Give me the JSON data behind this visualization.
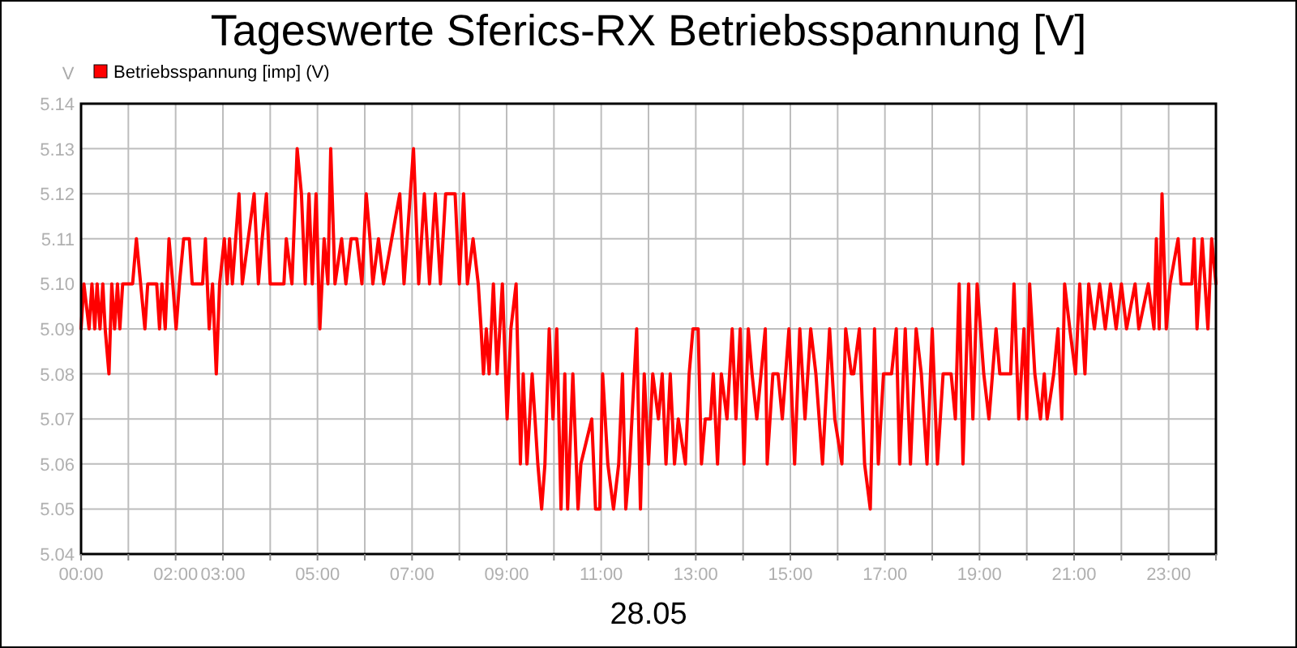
{
  "chart_data": {
    "type": "line",
    "title": "Tageswerte Sferics-RX Betriebsspannung [V]",
    "xlabel": "28.05",
    "ylabel": "V",
    "xlim": [
      0,
      24
    ],
    "xticks": [
      {
        "value": 0,
        "label": "00:00"
      },
      {
        "value": 1,
        "label": null
      },
      {
        "value": 2,
        "label": "02:00"
      },
      {
        "value": 3,
        "label": "03:00"
      },
      {
        "value": 4,
        "label": null
      },
      {
        "value": 5,
        "label": "05:00"
      },
      {
        "value": 6,
        "label": null
      },
      {
        "value": 7,
        "label": "07:00"
      },
      {
        "value": 8,
        "label": null
      },
      {
        "value": 9,
        "label": "09:00"
      },
      {
        "value": 10,
        "label": null
      },
      {
        "value": 11,
        "label": "11:00"
      },
      {
        "value": 12,
        "label": null
      },
      {
        "value": 13,
        "label": "13:00"
      },
      {
        "value": 14,
        "label": null
      },
      {
        "value": 15,
        "label": "15:00"
      },
      {
        "value": 16,
        "label": null
      },
      {
        "value": 17,
        "label": "17:00"
      },
      {
        "value": 18,
        "label": null
      },
      {
        "value": 19,
        "label": "19:00"
      },
      {
        "value": 20,
        "label": null
      },
      {
        "value": 21,
        "label": "21:00"
      },
      {
        "value": 22,
        "label": null
      },
      {
        "value": 23,
        "label": "23:00"
      },
      {
        "value": 24,
        "label": null
      }
    ],
    "ylim": [
      5.04,
      5.14
    ],
    "yticks": [
      5.04,
      5.05,
      5.06,
      5.07,
      5.08,
      5.09,
      {
        "value": 5.1,
        "label": "5.10"
      },
      5.11,
      5.12,
      5.13,
      5.14
    ],
    "grid": true,
    "legend": "top left",
    "marker": "none",
    "line_style": "solid",
    "series": [
      {
        "name": "Betriebsspannung [imp] (V)",
        "color": "#ff0000",
        "x": [
          0,
          0.06,
          0.17,
          0.23,
          0.29,
          0.34,
          0.4,
          0.46,
          0.51,
          0.59,
          0.65,
          0.71,
          0.77,
          0.82,
          0.88,
          1.09,
          1.17,
          1.26,
          1.35,
          1.41,
          1.6,
          1.66,
          1.71,
          1.78,
          1.86,
          1.94,
          2.01,
          2.08,
          2.17,
          2.29,
          2.35,
          2.57,
          2.63,
          2.71,
          2.78,
          2.86,
          2.93,
          3.03,
          3.09,
          3.14,
          3.2,
          3.27,
          3.34,
          3.41,
          3.66,
          3.75,
          3.83,
          3.92,
          4,
          4.29,
          4.34,
          4.46,
          4.57,
          4.66,
          4.74,
          4.82,
          4.89,
          4.97,
          5.05,
          5.14,
          5.22,
          5.28,
          5.37,
          5.51,
          5.6,
          5.71,
          5.83,
          5.94,
          6.03,
          6.11,
          6.17,
          6.29,
          6.4,
          6.74,
          6.83,
          7.03,
          7.14,
          7.26,
          7.37,
          7.49,
          7.6,
          7.71,
          7.83,
          7.91,
          8,
          8.09,
          8.17,
          8.29,
          8.4,
          8.46,
          8.51,
          8.57,
          8.63,
          8.72,
          8.8,
          8.91,
          9.01,
          9.09,
          9.2,
          9.29,
          9.35,
          9.43,
          9.54,
          9.66,
          9.74,
          9.81,
          9.9,
          9.98,
          10.06,
          10.15,
          10.23,
          10.29,
          10.4,
          10.51,
          10.57,
          10.8,
          10.88,
          10.97,
          11.03,
          11.14,
          11.26,
          11.37,
          11.45,
          11.52,
          11.6,
          11.75,
          11.83,
          11.91,
          12,
          12.09,
          12.21,
          12.29,
          12.37,
          12.46,
          12.55,
          12.63,
          12.78,
          12.86,
          12.94,
          13.05,
          13.12,
          13.2,
          13.31,
          13.37,
          13.46,
          13.54,
          13.66,
          13.77,
          13.85,
          13.94,
          14.02,
          14.11,
          14.19,
          14.29,
          14.38,
          14.47,
          14.51,
          14.63,
          14.74,
          14.83,
          14.97,
          15.09,
          15.2,
          15.31,
          15.43,
          15.54,
          15.68,
          15.83,
          15.94,
          16.09,
          16.17,
          16.29,
          16.34,
          16.46,
          16.57,
          16.69,
          16.78,
          16.86,
          16.97,
          17.14,
          17.24,
          17.31,
          17.43,
          17.54,
          17.66,
          17.77,
          17.89,
          18,
          18.11,
          18.23,
          18.4,
          18.49,
          18.57,
          18.65,
          18.77,
          18.86,
          18.95,
          19.09,
          19.2,
          19.35,
          19.43,
          19.66,
          19.73,
          19.83,
          19.94,
          20,
          20.06,
          20.17,
          20.29,
          20.37,
          20.43,
          20.57,
          20.66,
          20.74,
          20.8,
          20.91,
          21.03,
          21.12,
          21.23,
          21.31,
          21.43,
          21.54,
          21.66,
          21.77,
          21.89,
          22,
          22.11,
          22.29,
          22.37,
          22.57,
          22.69,
          22.74,
          22.8,
          22.86,
          22.95,
          23.03,
          23.2,
          23.26,
          23.49,
          23.54,
          23.6,
          23.71,
          23.83,
          23.91,
          24
        ],
        "values": [
          5.09,
          5.1,
          5.09,
          5.1,
          5.09,
          5.1,
          5.09,
          5.1,
          5.09,
          5.08,
          5.1,
          5.09,
          5.1,
          5.09,
          5.1,
          5.1,
          5.11,
          5.1,
          5.09,
          5.1,
          5.1,
          5.09,
          5.1,
          5.09,
          5.11,
          5.1,
          5.09,
          5.1,
          5.11,
          5.11,
          5.1,
          5.1,
          5.11,
          5.09,
          5.1,
          5.08,
          5.1,
          5.11,
          5.1,
          5.11,
          5.1,
          5.11,
          5.12,
          5.1,
          5.12,
          5.1,
          5.11,
          5.12,
          5.1,
          5.1,
          5.11,
          5.1,
          5.13,
          5.12,
          5.1,
          5.12,
          5.1,
          5.12,
          5.09,
          5.11,
          5.1,
          5.13,
          5.1,
          5.11,
          5.1,
          5.11,
          5.11,
          5.1,
          5.12,
          5.11,
          5.1,
          5.11,
          5.1,
          5.12,
          5.1,
          5.13,
          5.1,
          5.12,
          5.1,
          5.12,
          5.1,
          5.12,
          5.12,
          5.12,
          5.1,
          5.12,
          5.1,
          5.11,
          5.1,
          5.09,
          5.08,
          5.09,
          5.08,
          5.1,
          5.08,
          5.1,
          5.07,
          5.09,
          5.1,
          5.06,
          5.08,
          5.06,
          5.08,
          5.06,
          5.05,
          5.06,
          5.09,
          5.07,
          5.09,
          5.05,
          5.08,
          5.05,
          5.08,
          5.05,
          5.06,
          5.07,
          5.05,
          5.05,
          5.08,
          5.06,
          5.05,
          5.06,
          5.08,
          5.05,
          5.06,
          5.09,
          5.05,
          5.08,
          5.06,
          5.08,
          5.07,
          5.08,
          5.06,
          5.08,
          5.06,
          5.07,
          5.06,
          5.08,
          5.09,
          5.09,
          5.06,
          5.07,
          5.07,
          5.08,
          5.06,
          5.08,
          5.07,
          5.09,
          5.07,
          5.09,
          5.06,
          5.09,
          5.08,
          5.07,
          5.08,
          5.09,
          5.06,
          5.08,
          5.08,
          5.07,
          5.09,
          5.06,
          5.09,
          5.07,
          5.09,
          5.08,
          5.06,
          5.09,
          5.07,
          5.06,
          5.09,
          5.08,
          5.08,
          5.09,
          5.06,
          5.05,
          5.09,
          5.06,
          5.08,
          5.08,
          5.09,
          5.06,
          5.09,
          5.06,
          5.09,
          5.08,
          5.06,
          5.09,
          5.06,
          5.08,
          5.08,
          5.07,
          5.1,
          5.06,
          5.1,
          5.07,
          5.1,
          5.08,
          5.07,
          5.09,
          5.08,
          5.08,
          5.1,
          5.07,
          5.09,
          5.07,
          5.1,
          5.08,
          5.07,
          5.08,
          5.07,
          5.08,
          5.09,
          5.07,
          5.1,
          5.09,
          5.08,
          5.1,
          5.08,
          5.1,
          5.09,
          5.1,
          5.09,
          5.1,
          5.09,
          5.1,
          5.09,
          5.1,
          5.09,
          5.1,
          5.09,
          5.11,
          5.09,
          5.12,
          5.09,
          5.1,
          5.11,
          5.1,
          5.1,
          5.11,
          5.09,
          5.11,
          5.09,
          5.11,
          5.1
        ]
      }
    ]
  }
}
